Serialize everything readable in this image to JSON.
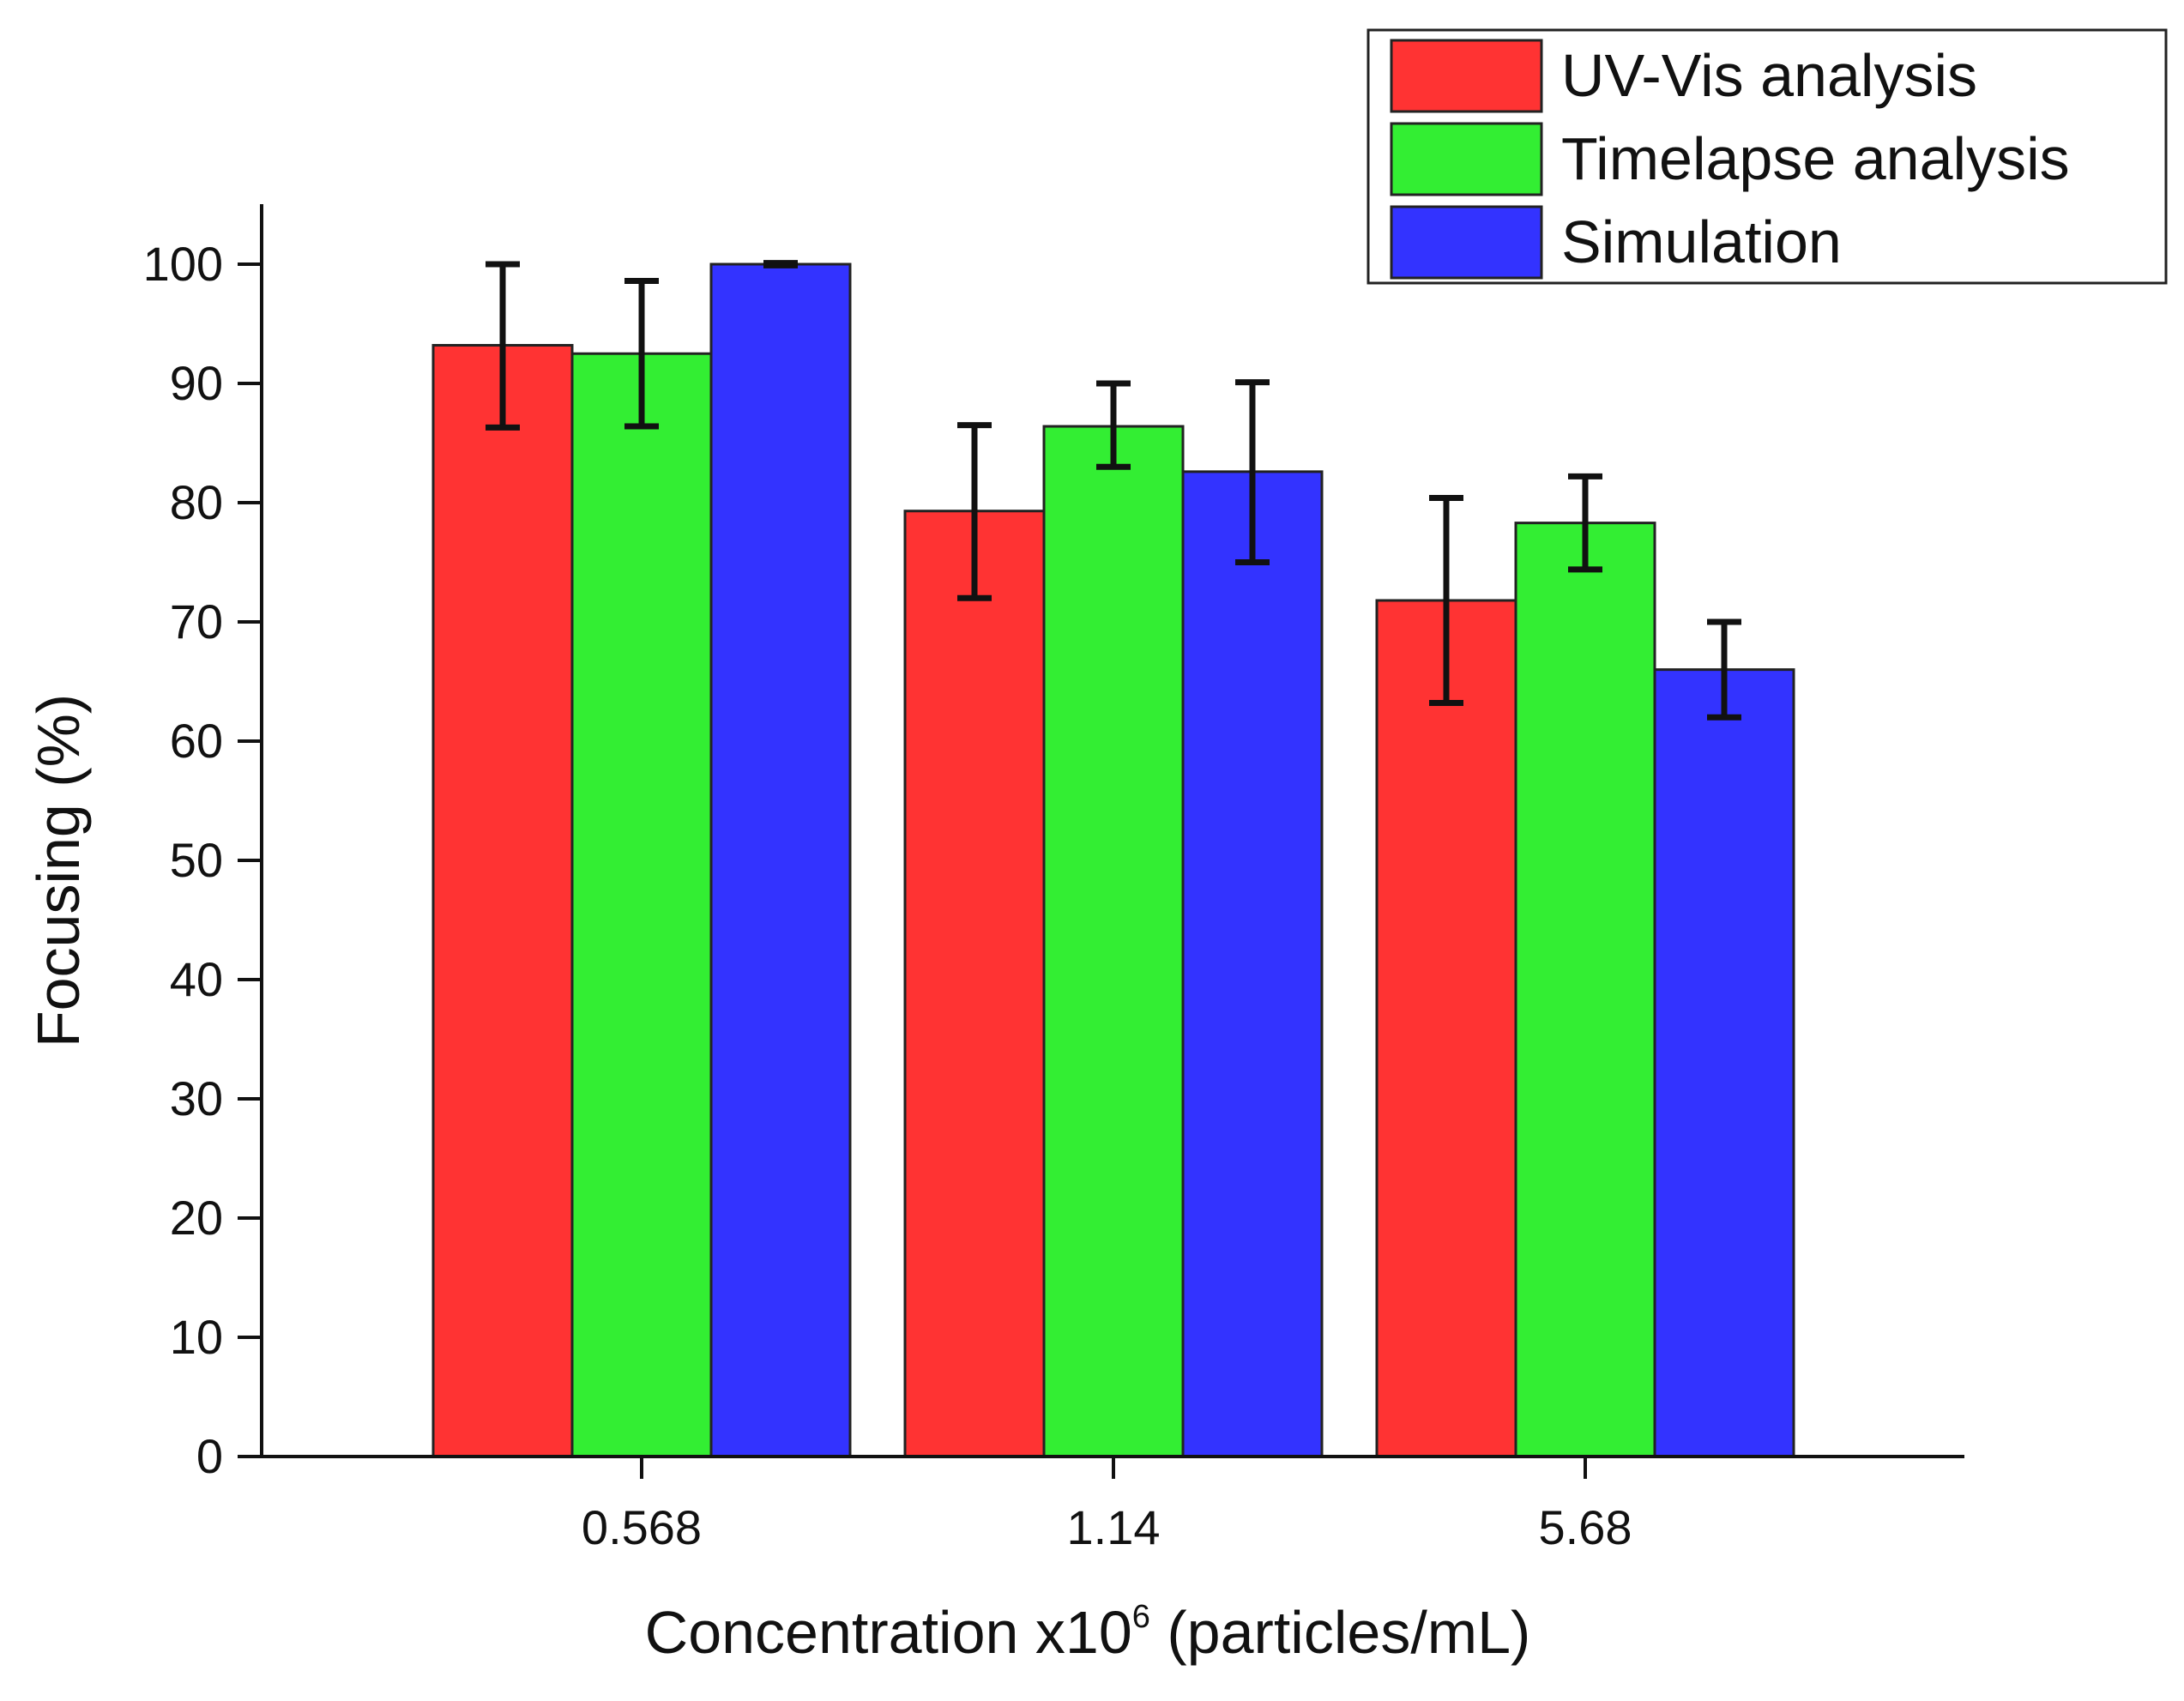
{
  "chart_data": {
    "type": "bar",
    "title": "",
    "xlabel": "Concentration x10",
    "xlabel_superscript": "6",
    "xlabel_suffix": " (particles/mL)",
    "ylabel": "Focusing (%)",
    "ylim": [
      0,
      105
    ],
    "yticks": [
      "0",
      "10",
      "20",
      "30",
      "40",
      "50",
      "60",
      "70",
      "80",
      "90",
      "100"
    ],
    "categories": [
      "0.568",
      "1.14",
      "5.68"
    ],
    "legend_position": "top-right",
    "grid": false,
    "series": [
      {
        "name": "UV-Vis analysis",
        "color": "#ff3333",
        "values": [
          93.2,
          79.3,
          71.8
        ],
        "error_low": [
          86.3,
          72.0,
          63.2
        ],
        "error_high": [
          100.0,
          86.5,
          80.4
        ]
      },
      {
        "name": "Timelapse analysis",
        "color": "#33ee33",
        "values": [
          92.5,
          86.4,
          78.3
        ],
        "error_low": [
          86.4,
          83.0,
          74.4
        ],
        "error_high": [
          98.6,
          90.0,
          82.2
        ]
      },
      {
        "name": "Simulation",
        "color": "#3333ff",
        "values": [
          100.0,
          82.6,
          66.0
        ],
        "error_low": [
          99.9,
          75.0,
          62.0
        ],
        "error_high": [
          100.1,
          90.1,
          70.0
        ]
      }
    ]
  }
}
